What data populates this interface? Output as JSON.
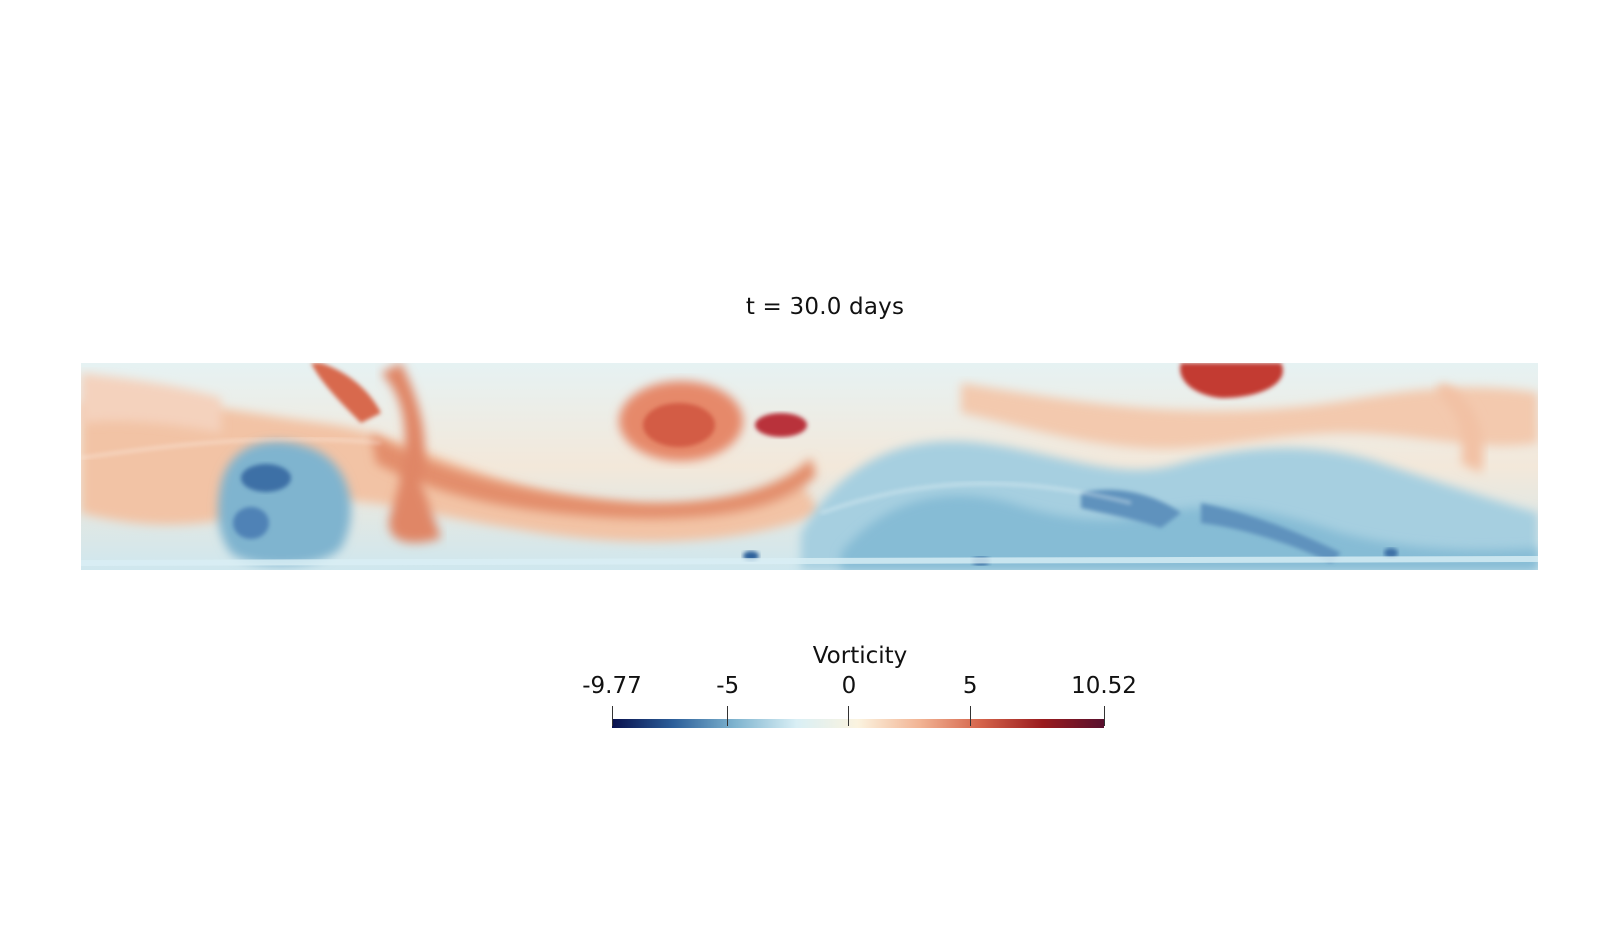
{
  "title": "t = 30.0 days",
  "colorbar": {
    "title": "Vorticity",
    "min_label": "-9.77",
    "max_label": "10.52",
    "min": -9.77,
    "max": 10.52,
    "ticks": [
      {
        "value": -9.77,
        "label": "-9.77"
      },
      {
        "value": -5,
        "label": "-5"
      },
      {
        "value": 0,
        "label": "0"
      },
      {
        "value": 5,
        "label": "5"
      },
      {
        "value": 10.52,
        "label": "10.52"
      }
    ],
    "colormap": [
      "#08104d",
      "#2c5f9a",
      "#7fb4cf",
      "#d9eff5",
      "#fbf3df",
      "#f2b494",
      "#d4634a",
      "#9a1b1e",
      "#58102e"
    ]
  },
  "field_colors": {
    "background": "#dbeff2",
    "positive_light": "#f6d3bb",
    "positive_mid": "#e9966f",
    "positive_strong": "#c9463a",
    "negative_light": "#b7dbe6",
    "negative_mid": "#7fb4cf",
    "negative_strong": "#2c5f9a"
  }
}
